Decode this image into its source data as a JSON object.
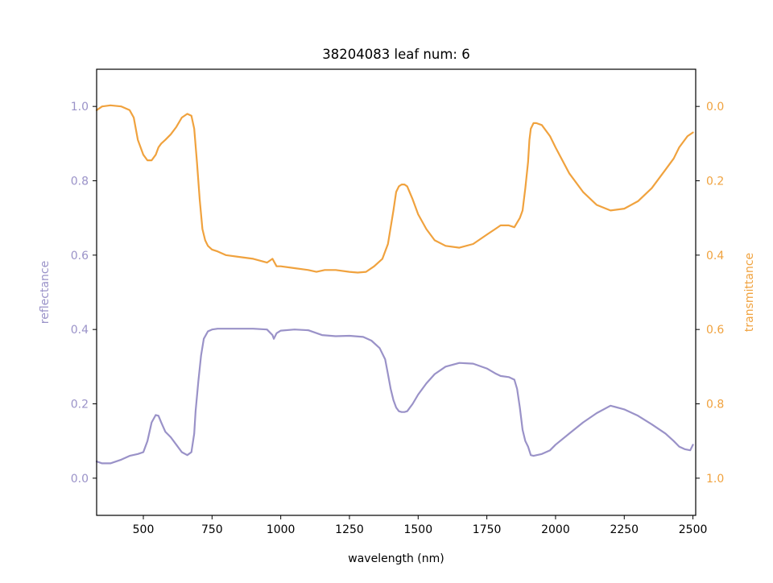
{
  "chart_data": {
    "type": "line",
    "title": "38204083 leaf num: 6",
    "xlabel": "wavelength (nm)",
    "ylabel_left": "reflectance",
    "ylabel_right": "transmittance",
    "xlim": [
      330,
      2510
    ],
    "ylim_left": [
      -0.1,
      1.1
    ],
    "ylim_right": [
      1.1,
      -0.1
    ],
    "right_axis_inverted": true,
    "xticks": [
      500,
      750,
      1000,
      1250,
      1500,
      1750,
      2000,
      2250,
      2500
    ],
    "xtick_labels": [
      "500",
      "750",
      "1000",
      "1250",
      "1500",
      "1750",
      "2000",
      "2250",
      "2500"
    ],
    "yticks_left": [
      0.0,
      0.2,
      0.4,
      0.6,
      0.8,
      1.0
    ],
    "ytick_labels_left": [
      "0.0",
      "0.2",
      "0.4",
      "0.6",
      "0.8",
      "1.0"
    ],
    "yticks_right": [
      0.0,
      0.2,
      0.4,
      0.6,
      0.8,
      1.0
    ],
    "ytick_labels_right": [
      "0.0",
      "0.2",
      "0.4",
      "0.6",
      "0.8",
      "1.0"
    ],
    "grid": false,
    "colors": {
      "reflectance": "#9a92c8",
      "transmittance": "#f0a23e",
      "axis": "#000000"
    },
    "series": [
      {
        "axis": "left",
        "x": [
          330,
          350,
          380,
          420,
          450,
          480,
          500,
          515,
          530,
          545,
          555,
          565,
          580,
          600,
          620,
          640,
          660,
          675,
          685,
          690,
          700,
          710,
          720,
          735,
          750,
          770,
          800,
          850,
          900,
          950,
          970,
          975,
          985,
          1000,
          1050,
          1100,
          1150,
          1200,
          1250,
          1300,
          1330,
          1360,
          1380,
          1390,
          1400,
          1410,
          1420,
          1430,
          1440,
          1450,
          1460,
          1480,
          1500,
          1530,
          1560,
          1600,
          1650,
          1700,
          1750,
          1780,
          1800,
          1830,
          1850,
          1860,
          1870,
          1880,
          1890,
          1900,
          1910,
          1920,
          1950,
          1980,
          2000,
          2050,
          2100,
          2150,
          2200,
          2250,
          2300,
          2350,
          2400,
          2430,
          2450,
          2470,
          2490,
          2500
        ],
        "y": [
          0.045,
          0.04,
          0.04,
          0.05,
          0.06,
          0.065,
          0.07,
          0.1,
          0.15,
          0.17,
          0.168,
          0.15,
          0.125,
          0.11,
          0.09,
          0.07,
          0.062,
          0.07,
          0.12,
          0.18,
          0.26,
          0.33,
          0.375,
          0.395,
          0.4,
          0.402,
          0.402,
          0.402,
          0.402,
          0.4,
          0.385,
          0.375,
          0.39,
          0.397,
          0.4,
          0.398,
          0.385,
          0.382,
          0.383,
          0.38,
          0.37,
          0.35,
          0.32,
          0.28,
          0.24,
          0.21,
          0.19,
          0.18,
          0.178,
          0.178,
          0.18,
          0.2,
          0.225,
          0.255,
          0.28,
          0.3,
          0.31,
          0.308,
          0.295,
          0.282,
          0.275,
          0.272,
          0.265,
          0.24,
          0.19,
          0.13,
          0.1,
          0.085,
          0.062,
          0.06,
          0.065,
          0.075,
          0.09,
          0.12,
          0.15,
          0.175,
          0.195,
          0.185,
          0.168,
          0.145,
          0.12,
          0.1,
          0.085,
          0.078,
          0.075,
          0.09
        ]
      },
      {
        "axis": "right",
        "x": [
          330,
          350,
          380,
          420,
          450,
          465,
          480,
          500,
          515,
          530,
          545,
          555,
          565,
          580,
          600,
          620,
          640,
          660,
          675,
          685,
          695,
          705,
          715,
          725,
          735,
          750,
          770,
          800,
          850,
          900,
          950,
          970,
          985,
          1000,
          1050,
          1100,
          1130,
          1160,
          1200,
          1250,
          1280,
          1310,
          1340,
          1370,
          1390,
          1410,
          1420,
          1430,
          1440,
          1450,
          1460,
          1480,
          1500,
          1530,
          1560,
          1600,
          1650,
          1700,
          1750,
          1780,
          1800,
          1830,
          1850,
          1870,
          1880,
          1890,
          1900,
          1905,
          1910,
          1920,
          1930,
          1950,
          1980,
          2000,
          2050,
          2100,
          2150,
          2200,
          2250,
          2300,
          2350,
          2400,
          2430,
          2450,
          2480,
          2500
        ],
        "y": [
          0.01,
          0.0,
          -0.003,
          0.0,
          0.01,
          0.03,
          0.09,
          0.13,
          0.145,
          0.145,
          0.13,
          0.11,
          0.1,
          0.09,
          0.075,
          0.055,
          0.03,
          0.02,
          0.025,
          0.06,
          0.15,
          0.25,
          0.33,
          0.36,
          0.375,
          0.385,
          0.39,
          0.4,
          0.405,
          0.41,
          0.42,
          0.41,
          0.43,
          0.43,
          0.435,
          0.44,
          0.445,
          0.44,
          0.44,
          0.445,
          0.447,
          0.445,
          0.43,
          0.41,
          0.37,
          0.28,
          0.23,
          0.215,
          0.21,
          0.21,
          0.215,
          0.25,
          0.29,
          0.33,
          0.36,
          0.375,
          0.38,
          0.37,
          0.345,
          0.33,
          0.32,
          0.32,
          0.325,
          0.3,
          0.28,
          0.22,
          0.15,
          0.09,
          0.06,
          0.045,
          0.045,
          0.05,
          0.08,
          0.11,
          0.18,
          0.23,
          0.265,
          0.28,
          0.275,
          0.255,
          0.22,
          0.17,
          0.14,
          0.11,
          0.08,
          0.07
        ]
      }
    ]
  }
}
